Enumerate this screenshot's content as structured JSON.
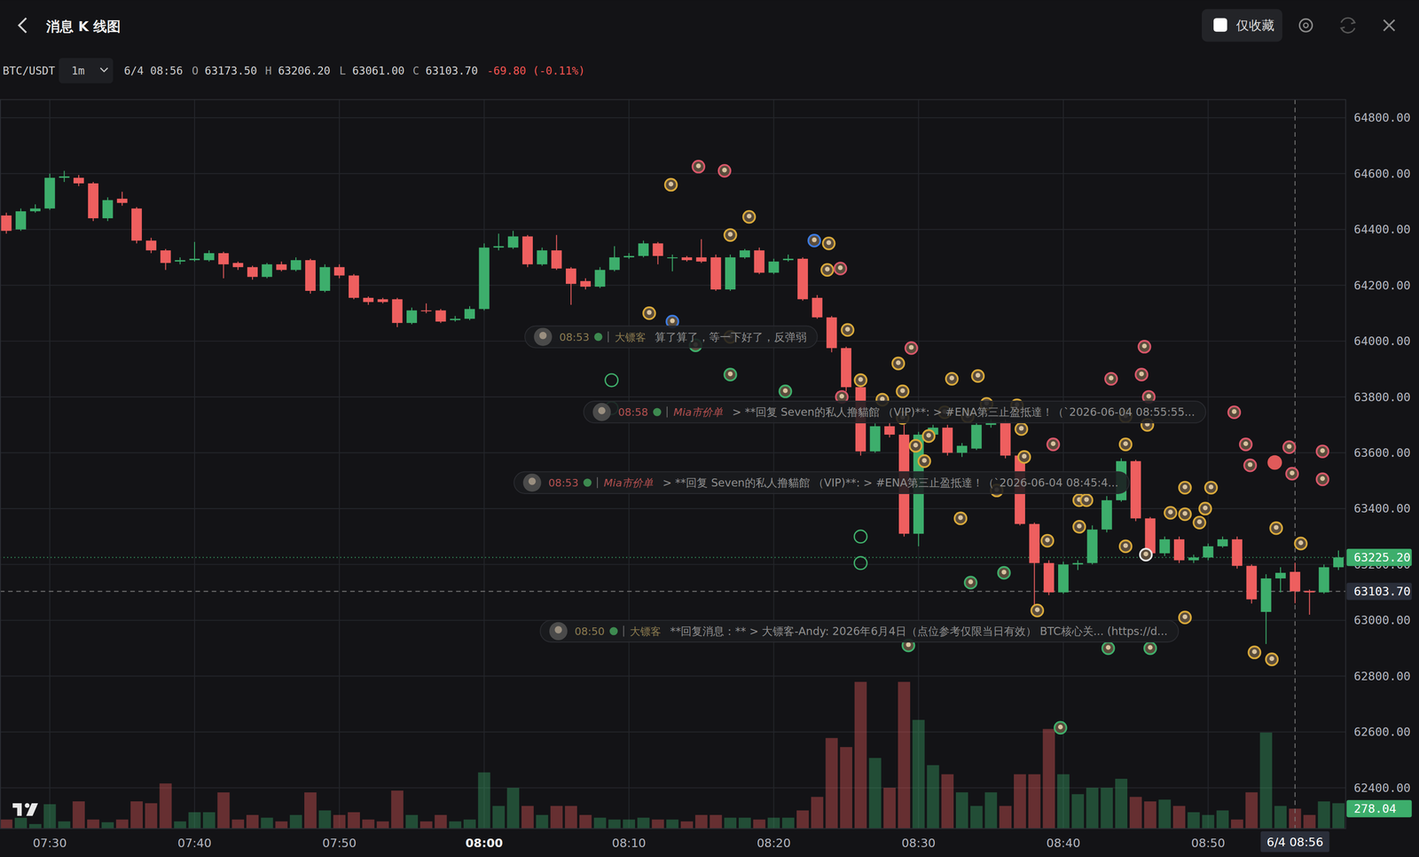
{
  "header": {
    "title": "消息 K 线图",
    "favorites_only": "仅收藏"
  },
  "legend_bar": {
    "symbol": "BTC/USDT",
    "interval": "1m",
    "time": "6/4 08:56",
    "ohlc": [
      {
        "key": "O",
        "value": "63173.50"
      },
      {
        "key": "H",
        "value": "63206.20"
      },
      {
        "key": "L",
        "value": "63061.00"
      },
      {
        "key": "C",
        "value": "63103.70"
      }
    ],
    "change": "-69.80 (-0.11%)"
  },
  "chart_data": {
    "type": "candlestick",
    "grid": true,
    "colors": [
      "#3dae6c",
      "#ee5f5f"
    ],
    "xlim": [
      26.5625,
      119.5
    ],
    "ylim": [
      62254,
      64865
    ],
    "xticks": [
      {
        "value": 30,
        "label": "07:30"
      },
      {
        "value": 40,
        "label": "07:40"
      },
      {
        "value": 50,
        "label": "07:50"
      },
      {
        "value": 60,
        "label": "08:00"
      },
      {
        "value": 70,
        "label": "08:10"
      },
      {
        "value": 80,
        "label": "08:20"
      },
      {
        "value": 90,
        "label": "08:30"
      },
      {
        "value": 100,
        "label": "08:40"
      },
      {
        "value": 110,
        "label": "08:50"
      }
    ],
    "yticks": [
      {
        "value": 62400,
        "label": "62400.00"
      },
      {
        "value": 62600,
        "label": "62600.00"
      },
      {
        "value": 62800,
        "label": "62800.00"
      },
      {
        "value": 63000,
        "label": "63000.00"
      },
      {
        "value": 63200,
        "label": "63200.00"
      },
      {
        "value": 63400,
        "label": "63400.00"
      },
      {
        "value": 63600,
        "label": "63600.00"
      },
      {
        "value": 63800,
        "label": "63800.00"
      },
      {
        "value": 64000,
        "label": "64000.00"
      },
      {
        "value": 64200,
        "label": "64200.00"
      },
      {
        "value": 64400,
        "label": "64400.00"
      },
      {
        "value": 64600,
        "label": "64600.00"
      },
      {
        "value": 64800,
        "label": "64800.00"
      }
    ],
    "x": [
      27,
      28,
      29,
      30,
      31,
      32,
      33,
      34,
      35,
      36,
      37,
      38,
      39,
      40,
      41,
      42,
      43,
      44,
      45,
      46,
      47,
      48,
      49,
      50,
      51,
      52,
      53,
      54,
      55,
      56,
      57,
      58,
      59,
      60,
      61,
      62,
      63,
      64,
      65,
      66,
      67,
      68,
      69,
      70,
      71,
      72,
      73,
      74,
      75,
      76,
      77,
      78,
      79,
      80,
      81,
      82,
      83,
      84,
      85,
      86,
      87,
      88,
      89,
      90,
      91,
      92,
      93,
      94,
      95,
      96,
      97,
      98,
      99,
      100,
      101,
      102,
      103,
      104,
      105,
      106,
      107,
      108,
      109,
      110,
      111,
      112,
      113,
      114,
      115,
      116,
      117,
      118,
      119
    ],
    "open": [
      64450,
      64400,
      64465,
      64475,
      64585,
      64585,
      64565,
      64440,
      64510,
      64475,
      64360,
      64325,
      64285,
      64290,
      64290,
      64315,
      64280,
      64265,
      64230,
      64275,
      64255,
      64290,
      64180,
      64265,
      64235,
      64155,
      64150,
      64150,
      64065,
      64110,
      64110,
      64075,
      64080,
      64115,
      64335,
      64335,
      64375,
      64275,
      64325,
      64260,
      64215,
      64195,
      64255,
      64300,
      64305,
      64350,
      64300,
      64300,
      64300,
      64300,
      64185,
      64300,
      64325,
      64245,
      64290,
      64295,
      64155,
      64085,
      63975,
      63835,
      63605,
      63695,
      63665,
      63310,
      63665,
      63690,
      63600,
      63615,
      63700,
      63710,
      63590,
      63345,
      63205,
      63100,
      63200,
      63205,
      63325,
      63430,
      63570,
      63365,
      63240,
      63290,
      63215,
      63225,
      63265,
      63290,
      63195,
      63030,
      63150,
      63173.5,
      63105,
      63100,
      63190
    ],
    "high": [
      64460,
      64475,
      64490,
      64600,
      64610,
      64595,
      64570,
      64515,
      64535,
      64480,
      64370,
      64330,
      64300,
      64355,
      64325,
      64320,
      64285,
      64270,
      64280,
      64285,
      64300,
      64295,
      64275,
      64275,
      64240,
      64160,
      64155,
      64155,
      64120,
      64135,
      64115,
      64090,
      64125,
      64350,
      64385,
      64395,
      64380,
      64335,
      64380,
      64265,
      64225,
      64265,
      64340,
      64315,
      64360,
      64355,
      64310,
      64305,
      64365,
      64310,
      64310,
      64330,
      64335,
      64295,
      64310,
      64300,
      64165,
      64090,
      63980,
      63870,
      63705,
      63710,
      63700,
      63675,
      63700,
      63700,
      63635,
      63710,
      63720,
      63720,
      63600,
      63350,
      63215,
      63210,
      63215,
      63340,
      63445,
      63580,
      63575,
      63370,
      63300,
      63300,
      63235,
      63275,
      63300,
      63300,
      63200,
      63165,
      63190,
      63206.2,
      63110,
      63200,
      63250
    ],
    "low": [
      64385,
      64395,
      64460,
      64470,
      64570,
      64555,
      64430,
      64430,
      64485,
      64350,
      64315,
      64255,
      64275,
      64285,
      64285,
      64225,
      64255,
      64220,
      64225,
      64250,
      64250,
      64170,
      64175,
      64225,
      64150,
      64130,
      64135,
      64050,
      64060,
      64100,
      64065,
      64070,
      64075,
      64110,
      64325,
      64330,
      64265,
      64270,
      64255,
      64130,
      64185,
      64190,
      64250,
      64295,
      64300,
      64275,
      64250,
      64285,
      64280,
      64180,
      64180,
      64295,
      64240,
      64240,
      64285,
      64145,
      64080,
      63960,
      63820,
      63590,
      63600,
      63655,
      63300,
      63265,
      63655,
      63590,
      63585,
      63610,
      63690,
      63580,
      63340,
      63020,
      63090,
      63095,
      63180,
      63200,
      63315,
      63425,
      63355,
      63230,
      63230,
      63205,
      63205,
      63215,
      63260,
      63185,
      63060,
      62915,
      63100,
      63061,
      63020,
      63095,
      63180
    ],
    "close": [
      64395,
      64465,
      64475,
      64585,
      64590,
      64565,
      64440,
      64505,
      64495,
      64360,
      64325,
      64280,
      64290,
      64295,
      64315,
      64275,
      64265,
      64230,
      64275,
      64255,
      64290,
      64180,
      64265,
      64235,
      64155,
      64140,
      64140,
      64065,
      64110,
      64108,
      64070,
      64080,
      64115,
      64335,
      64340,
      64375,
      64275,
      64325,
      64260,
      64205,
      64195,
      64255,
      64300,
      64305,
      64350,
      64305,
      64300,
      64290,
      64285,
      64185,
      64300,
      64325,
      64245,
      64285,
      64295,
      64150,
      64085,
      63975,
      63835,
      63605,
      63695,
      63665,
      63310,
      63665,
      63690,
      63600,
      63625,
      63700,
      63710,
      63590,
      63345,
      63205,
      63100,
      63200,
      63205,
      63325,
      63430,
      63570,
      63365,
      63240,
      63290,
      63215,
      63225,
      63265,
      63290,
      63195,
      63075,
      63150,
      63170,
      63103.7,
      63100,
      63190,
      63225.2
    ],
    "volume": [
      126,
      150,
      63,
      340,
      100,
      380,
      126,
      88,
      126,
      380,
      354,
      630,
      100,
      228,
      228,
      505,
      126,
      190,
      152,
      100,
      190,
      505,
      253,
      190,
      228,
      126,
      100,
      530,
      190,
      100,
      190,
      100,
      126,
      784,
      316,
      568,
      316,
      190,
      316,
      316,
      190,
      152,
      126,
      126,
      152,
      126,
      126,
      100,
      190,
      190,
      152,
      152,
      126,
      152,
      152,
      253,
      442,
      1264,
      1138,
      2048,
      986,
      569,
      2048,
      1517,
      885,
      758,
      506,
      316,
      506,
      316,
      758,
      758,
      1390,
      758,
      480,
      569,
      569,
      695,
      442,
      379,
      404,
      316,
      228,
      190,
      253,
      126,
      506,
      1340,
      316,
      278.04,
      190,
      379,
      354
    ],
    "volume_lim": [
      0,
      3000
    ],
    "last_price": {
      "value": 63225.2,
      "label": "63225.20"
    },
    "crosshair": {
      "x": 116,
      "x_label": "6/4 08:56",
      "y": 63103.7,
      "y_label": "63103.70"
    },
    "volume_tag": {
      "value": 278.04,
      "label": "278.04"
    },
    "message_groups": [
      {
        "marker": "avatar",
        "x": [
          72.9,
          74.8,
          76.6,
          78.3,
          77.0,
          82.8,
          83.8,
          83.7,
          84.6,
          71.4,
          73.0,
          77.0,
          74.6,
          85.1,
          77.0,
          80.8,
          89.5,
          88.6,
          86.0,
          87.5,
          88.9,
          84.7,
          92.3,
          94.1,
          94.7,
          96.8,
          91.8,
          93.4,
          97.1,
          88.9,
          89.8,
          90.7,
          90.4,
          97.3,
          99.3,
          95.4,
          92.9,
          93.6,
          95.9,
          89.3,
          99.8,
          103.1,
          106.0,
          98.2,
          98.9,
          101.1,
          101.6,
          101.1,
          104.3,
          105.6,
          103.3,
          105.4,
          105.9,
          104.3,
          105.8,
          104.3,
          105.7,
          107.4,
          108.4,
          108.4,
          109.8,
          110.2,
          109.4,
          108.4,
          111.8,
          112.6,
          112.9,
          115.6,
          115.8,
          117.9,
          117.9,
          114.7,
          116.4,
          113.2,
          114.4
        ],
        "y": [
          64560,
          64625,
          64610,
          64445,
          64380,
          64360,
          64350,
          64255,
          64260,
          64100,
          64070,
          64015,
          63985,
          64040,
          63880,
          63820,
          63975,
          63920,
          63860,
          63790,
          63820,
          63800,
          63865,
          63875,
          63775,
          63770,
          63745,
          63730,
          63685,
          63725,
          63625,
          63660,
          63570,
          63585,
          63630,
          63465,
          63365,
          63135,
          63170,
          62910,
          62615,
          62900,
          62900,
          63035,
          63285,
          63430,
          63430,
          63335,
          63265,
          63980,
          63865,
          63880,
          63800,
          63730,
          63700,
          63630,
          63235,
          63385,
          63475,
          63380,
          63400,
          63475,
          63350,
          63010,
          63745,
          63630,
          63555,
          63620,
          63525,
          63605,
          63505,
          63330,
          63275,
          62885,
          62860
        ],
        "colors": [
          "#d9a93a",
          "#d9576a",
          "#d9576a",
          "#d9a93a",
          "#d9a93a",
          "#3d7be0",
          "#d9a93a",
          "#d9a93a",
          "#d9576a",
          "#d9a93a",
          "#3d7be0",
          "#d9a93a",
          "#3fae6a",
          "#d9a93a",
          "#3fae6a",
          "#3fae6a",
          "#d9576a",
          "#d9a93a",
          "#d9a93a",
          "#d9a93a",
          "#d9a93a",
          "#d9576a",
          "#d9a93a",
          "#d9a93a",
          "#d9a93a",
          "#d9a93a",
          "#d9a93a",
          "#d9a93a",
          "#d9a93a",
          "#d9a93a",
          "#d9a93a",
          "#d9a93a",
          "#d9a93a",
          "#d9a93a",
          "#d9576a",
          "#d9a93a",
          "#d9a93a",
          "#3fae6a",
          "#3fae6a",
          "#3fae6a",
          "#3fae6a",
          "#3fae6a",
          "#3fae6a",
          "#d9a93a",
          "#d9a93a",
          "#d9a93a",
          "#d9a93a",
          "#d9a93a",
          "#d9a93a",
          "#d9576a",
          "#d9576a",
          "#d9576a",
          "#d9576a",
          "#d9a93a",
          "#d9a93a",
          "#d9a93a",
          "#e8e8e8",
          "#d9a93a",
          "#d9a93a",
          "#d9a93a",
          "#d9a93a",
          "#d9a93a",
          "#d9a93a",
          "#d9a93a",
          "#d9576a",
          "#d9576a",
          "#d9576a",
          "#d9576a",
          "#d9576a",
          "#d9576a",
          "#d9576a",
          "#d9a93a",
          "#d9a93a",
          "#d9a93a",
          "#d9a93a"
        ]
      },
      {
        "marker": "ring",
        "color": "#3fae6a",
        "x": [
          68.8,
          68.8,
          86.0,
          86.0
        ],
        "y": [
          63860,
          63760,
          63300,
          63205
        ]
      },
      {
        "marker": "dot",
        "color": "#e05a5a",
        "x": [
          114.6
        ],
        "y": [
          63565
        ]
      }
    ],
    "messages": [
      {
        "time": "08:53",
        "name": "大镖客",
        "color": "#8a7a50",
        "text": "算了算了，等一下好了，反弹弱"
      },
      {
        "time": "08:58",
        "name": "Mia市价单",
        "color": "#b05050",
        "text": "> **回复 Seven的私人撸貓館 （VIP)**: > #ENA第三止盈抵達！（`2026-06-04 08:55:55..."
      },
      {
        "time": "08:53",
        "name": "Mia市价单",
        "color": "#b05050",
        "text": "> **回复 Seven的私人撸貓館 （VIP)**: > #ENA第三止盈抵達！（`2026-06-04 08:45:4..."
      },
      {
        "time": "08:50",
        "name": "大镖客",
        "color": "#8a7a50",
        "text": "**回复消息：** > 大镖客-Andy: 2026年6月4日（点位参考仅限当日有效） BTC核心关... (https://d..."
      }
    ]
  }
}
